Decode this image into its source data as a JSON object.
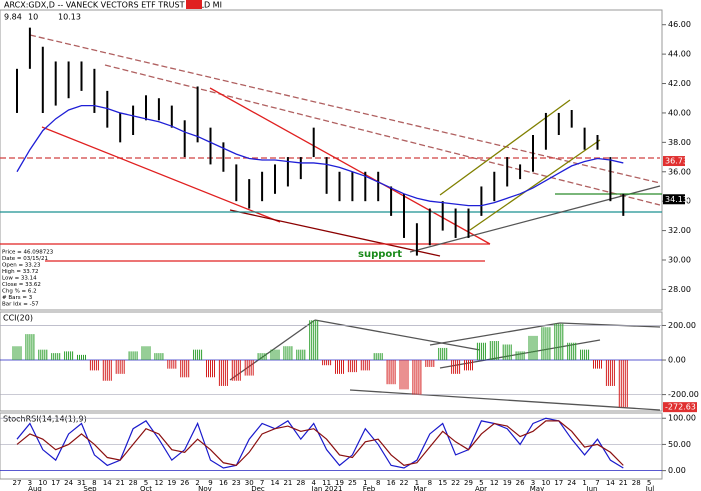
{
  "chart_data": [
    {
      "type": "ohlc",
      "title": "ARCX:GDX,D -- VANECK VECTORS ETF TRUST GOLD MI",
      "top_fields": [
        "9.84",
        "10",
        "10.13"
      ],
      "categories": [
        "27",
        "3",
        "10",
        "17",
        "24",
        "31",
        "8",
        "14",
        "21",
        "28",
        "5",
        "12",
        "19",
        "26",
        "2",
        "9",
        "16",
        "23",
        "30",
        "7",
        "14",
        "21",
        "28",
        "4",
        "11",
        "19",
        "25",
        "1",
        "8",
        "16",
        "22",
        "1",
        "8",
        "15",
        "22",
        "29",
        "5",
        "12",
        "19",
        "26",
        "3",
        "10",
        "17",
        "24",
        "1",
        "7",
        "14",
        "21",
        "28",
        "5"
      ],
      "months": [
        "Aug",
        "Sep",
        "Oct",
        "Nov",
        "Dec",
        "Jan 2021",
        "Feb",
        "Mar",
        "Apr",
        "May",
        "Jun",
        "Jul"
      ],
      "high": [
        43,
        45.8,
        44.5,
        43.5,
        43.5,
        43.5,
        43,
        41.5,
        40,
        40.5,
        41.2,
        41,
        40.5,
        39.5,
        41.8,
        39,
        38,
        36.5,
        35.5,
        36,
        36.5,
        37,
        37,
        39,
        37,
        36,
        36,
        36,
        36,
        35,
        34.5,
        32.5,
        33.5,
        34,
        33.5,
        33.5,
        35,
        36,
        37,
        36.5,
        38.5,
        40,
        40,
        40.2,
        39,
        38.5,
        37,
        34.5,
        null,
        null
      ],
      "low": [
        40,
        43,
        40,
        40.5,
        41,
        41.5,
        40,
        39,
        38,
        38.5,
        39.5,
        39.5,
        39,
        37,
        38,
        36.5,
        36,
        34,
        33.5,
        34,
        34.5,
        35,
        35.5,
        37,
        34.5,
        34,
        34,
        34,
        34,
        33,
        31.5,
        30.3,
        31,
        32,
        31.5,
        31.5,
        33,
        34,
        35,
        35.5,
        36,
        37.5,
        38.5,
        39,
        37.5,
        37.5,
        34,
        33,
        null,
        null
      ],
      "ma": [
        36,
        37.5,
        38.8,
        39.6,
        40.2,
        40.5,
        40.5,
        40.3,
        40,
        39.8,
        39.6,
        39.4,
        39.1,
        38.7,
        38.4,
        38,
        37.6,
        37.2,
        36.9,
        36.8,
        36.8,
        36.7,
        36.6,
        36.6,
        36.5,
        36.3,
        36,
        35.7,
        35.3,
        34.9,
        34.5,
        34.2,
        34,
        33.9,
        33.8,
        33.7,
        33.7,
        33.9,
        34.2,
        34.5,
        34.9,
        35.4,
        35.9,
        36.4,
        36.7,
        36.9,
        36.8,
        36.6,
        null,
        null
      ],
      "bar_color": "#000000",
      "ma_color": "#1f1fd6",
      "ylim": [
        26.6,
        47
      ],
      "yticks": [
        {
          "value": 28,
          "label": "28.00"
        },
        {
          "value": 30,
          "label": "30.00"
        },
        {
          "value": 32,
          "label": "32.00"
        },
        {
          "value": 34,
          "label": "34.00"
        },
        {
          "value": 36,
          "label": "36.00"
        },
        {
          "value": 38,
          "label": "38.00"
        },
        {
          "value": 40,
          "label": "40.00"
        },
        {
          "value": 42,
          "label": "42.00"
        },
        {
          "value": 44,
          "label": "44.00"
        },
        {
          "value": 46,
          "label": "46.00"
        }
      ],
      "level_label": {
        "value": 36.73,
        "label": "36.73"
      },
      "last_label": {
        "value": 34.13,
        "label": "34.13"
      },
      "annotation": "support",
      "info": [
        "Price = 46.098723",
        "Date = 03/15/21",
        "Open = 33.23",
        "High = 33.72",
        "Low = 33.14",
        "Close = 33.62",
        "Chg % = 6.2",
        "# Bars = 3",
        "Bar Idx = -57"
      ]
    },
    {
      "type": "histogram",
      "title": "CCI(20)",
      "values": [
        80,
        150,
        60,
        40,
        50,
        30,
        -60,
        -120,
        -80,
        50,
        80,
        40,
        -50,
        -100,
        60,
        -100,
        -150,
        -120,
        -90,
        40,
        60,
        80,
        60,
        230,
        -30,
        -80,
        -70,
        -60,
        40,
        -140,
        -170,
        -200,
        -40,
        70,
        -80,
        -60,
        100,
        110,
        90,
        50,
        140,
        190,
        210,
        100,
        60,
        -50,
        -150,
        -272.63,
        null,
        null
      ],
      "pos_color": "#2e9e2e",
      "neg_color": "#d42020",
      "ylim": [
        -295,
        278
      ],
      "yticks": [
        {
          "value": -200,
          "label": "-200.00"
        },
        {
          "value": 0,
          "label": "0.00"
        },
        {
          "value": 200,
          "label": "200.00"
        }
      ],
      "last_label": "-272.63"
    },
    {
      "type": "line",
      "title": "StochRSI(14,14(1),9)",
      "series": [
        {
          "color": "#1a1acc",
          "values": [
            60,
            90,
            40,
            20,
            70,
            90,
            30,
            10,
            20,
            80,
            95,
            60,
            20,
            40,
            90,
            20,
            5,
            10,
            60,
            90,
            80,
            95,
            60,
            90,
            40,
            10,
            30,
            80,
            50,
            10,
            5,
            20,
            70,
            90,
            30,
            40,
            95,
            90,
            80,
            50,
            90,
            100,
            95,
            60,
            30,
            60,
            20,
            5,
            null,
            null
          ]
        },
        {
          "color": "#8b1010",
          "values": [
            50,
            70,
            60,
            40,
            50,
            70,
            50,
            25,
            20,
            50,
            80,
            70,
            40,
            35,
            60,
            40,
            15,
            10,
            35,
            70,
            80,
            85,
            75,
            80,
            60,
            30,
            25,
            55,
            60,
            30,
            10,
            15,
            45,
            75,
            55,
            40,
            70,
            90,
            85,
            65,
            75,
            95,
            95,
            75,
            45,
            50,
            35,
            10,
            null,
            null
          ]
        }
      ],
      "ylim": [
        -16,
        110
      ],
      "yticks": [
        {
          "value": 0,
          "label": "0.00"
        },
        {
          "value": 50,
          "label": "50.00"
        },
        {
          "value": 100,
          "label": "100.00"
        }
      ]
    }
  ]
}
